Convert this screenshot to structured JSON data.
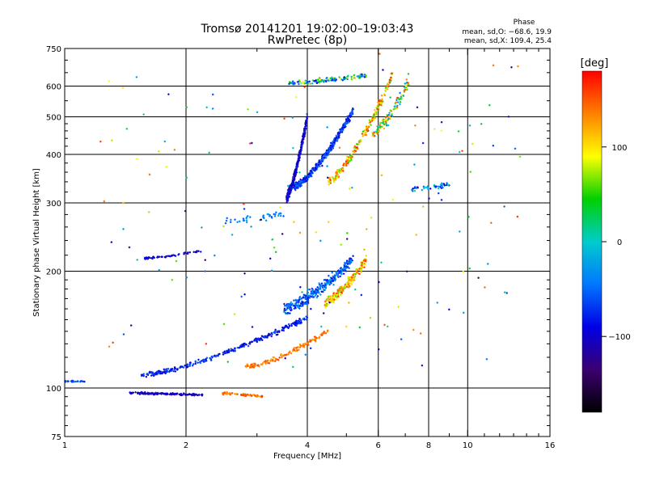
{
  "chart_data": {
    "type": "scatter",
    "title": "Tromsø 20141201 19:02:00–19:03:43",
    "subtitle": "RwPretec (8p)",
    "xlabel": "Frequency [MHz]",
    "ylabel": "Stationary phase Virtual Height [km]",
    "x_scale": "log",
    "y_scale": "log",
    "xlim": [
      1,
      16
    ],
    "ylim": [
      75,
      750
    ],
    "x_ticks": [
      1,
      2,
      4,
      6,
      8,
      10,
      16
    ],
    "y_ticks": [
      75,
      100,
      200,
      300,
      400,
      500,
      600,
      750
    ],
    "x_gridlines": [
      2,
      4,
      6,
      8,
      10
    ],
    "y_gridlines": [
      100,
      200,
      300,
      400,
      500,
      600
    ],
    "grid": true,
    "phase_stats": {
      "heading": "Phase",
      "line_o": "mean, sd,O: −68.6, 19.9",
      "line_x": "mean, sd,X: 109.4, 25.4"
    },
    "colorbar": {
      "label": "[deg]",
      "ticks": [
        {
          "value": 100,
          "label": "100"
        },
        {
          "value": 0,
          "label": "0"
        },
        {
          "value": -100,
          "label": "−100"
        }
      ],
      "range": [
        -180,
        180
      ],
      "colormap": [
        "#000000",
        "#3b0070",
        "#0000e6",
        "#0077ff",
        "#00cccc",
        "#00d000",
        "#ffff00",
        "#ff8000",
        "#ff0000"
      ]
    },
    "clusters": [
      {
        "name": "low-flat-trace",
        "count": 130,
        "x_range": [
          1.45,
          2.2
        ],
        "y_at_start": 97,
        "y_at_end": 96,
        "spread": 0.008,
        "phase": [
          -115,
          -95
        ]
      },
      {
        "name": "low-flat-trace-x",
        "count": 55,
        "x_range": [
          2.45,
          3.1
        ],
        "y_at_start": 97,
        "y_at_end": 95,
        "spread": 0.01,
        "phase": [
          120,
          160
        ]
      },
      {
        "name": "start-dots",
        "count": 25,
        "x_range": [
          1.0,
          1.12
        ],
        "y_at_start": 104,
        "y_at_end": 104,
        "spread": 0.006,
        "phase": [
          -80,
          -45
        ]
      },
      {
        "name": "e-region-o",
        "count": 300,
        "x_range": [
          1.55,
          4.0
        ],
        "y_at_start": 108,
        "y_at_end": 152,
        "spread": 0.02,
        "phase": [
          -110,
          -50
        ]
      },
      {
        "name": "e-region-x",
        "count": 130,
        "x_range": [
          2.8,
          4.5
        ],
        "y_at_start": 113,
        "y_at_end": 140,
        "spread": 0.02,
        "phase": [
          120,
          160
        ]
      },
      {
        "name": "f1-o",
        "count": 320,
        "x_range": [
          3.5,
          5.2
        ],
        "y_at_start": 160,
        "y_at_end": 215,
        "spread": 0.05,
        "phase": [
          -90,
          -20
        ]
      },
      {
        "name": "f1-x",
        "count": 200,
        "x_range": [
          4.4,
          5.6
        ],
        "y_at_start": 165,
        "y_at_end": 215,
        "spread": 0.04,
        "phase": [
          60,
          170
        ]
      },
      {
        "name": "f2-column",
        "count": 300,
        "x_range": [
          3.55,
          4.0
        ],
        "y_at_start": 310,
        "y_at_end": 500,
        "spread": 0.04,
        "phase": [
          -130,
          -70
        ]
      },
      {
        "name": "f2-o",
        "count": 380,
        "x_range": [
          3.7,
          5.2
        ],
        "y_at_start": 330,
        "y_at_end": 520,
        "spread": 0.03,
        "phase": [
          -100,
          -40
        ]
      },
      {
        "name": "f2-x",
        "count": 220,
        "x_range": [
          4.5,
          6.5
        ],
        "y_at_start": 340,
        "y_at_end": 640,
        "spread": 0.04,
        "phase": [
          40,
          175
        ]
      },
      {
        "name": "f2-top",
        "count": 120,
        "x_range": [
          3.6,
          5.6
        ],
        "y_at_start": 610,
        "y_at_end": 640,
        "spread": 0.02,
        "phase": [
          -120,
          100
        ]
      },
      {
        "name": "f2-right",
        "count": 110,
        "x_range": [
          5.8,
          7.2
        ],
        "y_at_start": 450,
        "y_at_end": 630,
        "spread": 0.06,
        "phase": [
          -50,
          160
        ]
      },
      {
        "name": "blob-215",
        "count": 50,
        "x_range": [
          1.58,
          2.2
        ],
        "y_at_start": 216,
        "y_at_end": 226,
        "spread": 0.01,
        "phase": [
          -110,
          -80
        ]
      },
      {
        "name": "row-275",
        "count": 40,
        "x_range": [
          2.5,
          3.5
        ],
        "y_at_start": 268,
        "y_at_end": 282,
        "spread": 0.03,
        "phase": [
          -60,
          -20
        ]
      },
      {
        "name": "cluster-330",
        "count": 45,
        "x_range": [
          7.2,
          9.0
        ],
        "y_at_start": 325,
        "y_at_end": 335,
        "spread": 0.02,
        "phase": [
          -120,
          30
        ]
      },
      {
        "name": "sparse",
        "count": 170,
        "x_range": [
          1.2,
          13.5
        ],
        "y_at_start": 120,
        "y_at_end": 640,
        "spread": 0.35,
        "phase": [
          -150,
          170
        ]
      }
    ]
  }
}
